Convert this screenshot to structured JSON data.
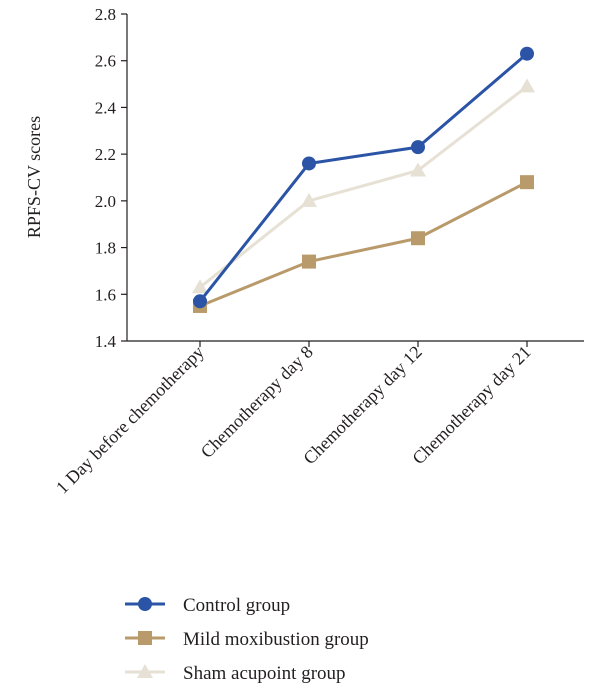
{
  "chart_data": {
    "type": "line",
    "title": "",
    "xlabel": "",
    "ylabel": "RPFS-CV scores",
    "ylim": [
      1.4,
      2.8
    ],
    "yticks": [
      1.4,
      1.6,
      1.8,
      2.0,
      2.2,
      2.4,
      2.6,
      2.8
    ],
    "ytick_labels": [
      "1.4",
      "1.6",
      "1.8",
      "2.0",
      "2.2",
      "2.4",
      "2.6",
      "2.8"
    ],
    "categories": [
      "1 Day before chemotherapy",
      "Chemotherapy day 8",
      "Chemotherapy day 12",
      "Chemotherapy day 21"
    ],
    "grid": false,
    "legend_position": "bottom",
    "series": [
      {
        "name": "Control group",
        "values": [
          1.57,
          2.16,
          2.23,
          2.63
        ],
        "color": "#2b54a6",
        "marker": "circle"
      },
      {
        "name": "Mild moxibustion group",
        "values": [
          1.55,
          1.74,
          1.84,
          2.08
        ],
        "color": "#b99a6a",
        "marker": "square"
      },
      {
        "name": "Sham acupoint group",
        "values": [
          1.63,
          2.0,
          2.13,
          2.49
        ],
        "color": "#e6e1d4",
        "marker": "triangle"
      }
    ]
  }
}
